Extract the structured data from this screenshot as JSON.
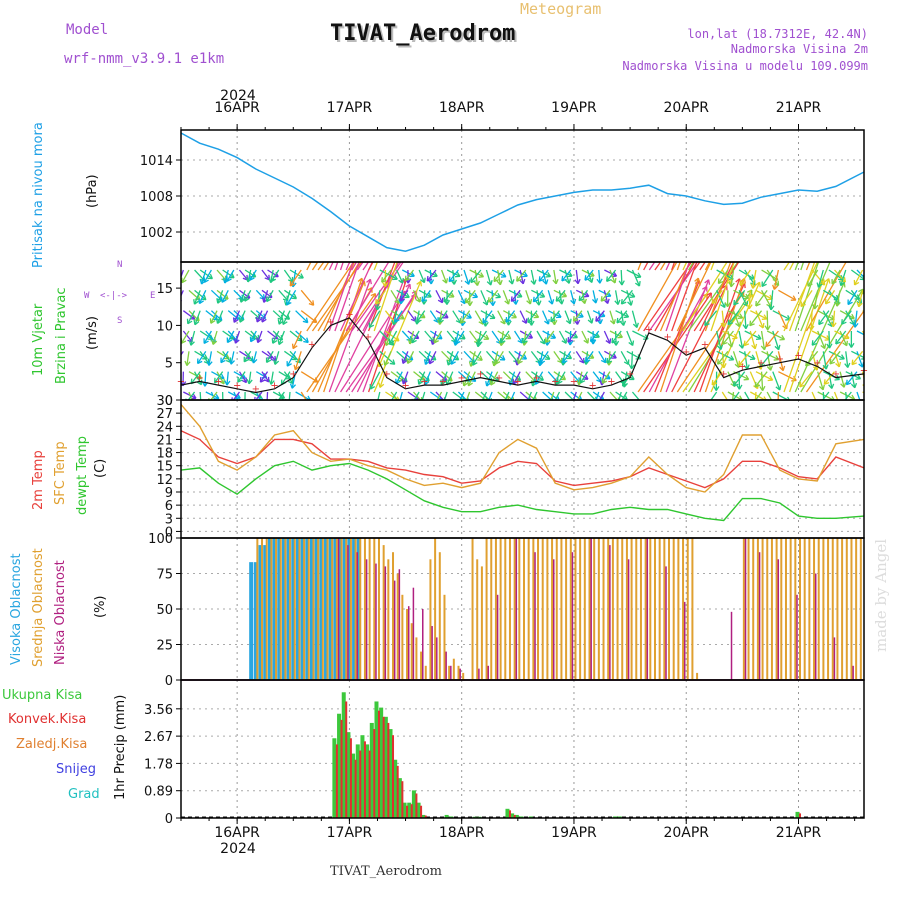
{
  "header": {
    "model_label": "Model",
    "model_name": "wrf-nmm_v3.9.1 e1km",
    "chart_kind": "Meteogram",
    "station_title": "TIVAT_Aerodrom",
    "lonlat": "lon,lat (18.7312E, 42.4N)",
    "alt_line1": "Nadmorska Visina 2m",
    "alt_line2": "Nadmorska Visina u modelu 109.099m",
    "footer_station": "TIVAT_Aerodrom",
    "watermark": "made by Angel",
    "year": "2024"
  },
  "colors": {
    "pressure": "#1ea0e6",
    "temp2m": "#e8413c",
    "sfc": "#e0a030",
    "dewpt": "#2fc62f",
    "high_cloud": "#2aa6e0",
    "mid_cloud": "#e0a030",
    "low_cloud": "#b02080",
    "total_rain": "#3cc83c",
    "conv_rain": "#e03030",
    "frozen": "#e08030",
    "snow": "#4040e0",
    "hail": "#20c0c0"
  },
  "x_axis": {
    "day_labels": [
      "16APR",
      "17APR",
      "18APR",
      "19APR",
      "20APR",
      "21APR"
    ],
    "day_starts_hours": [
      12,
      36,
      60,
      84,
      108,
      132
    ],
    "range_hours": [
      0,
      146
    ]
  },
  "panels": {
    "pressure": {
      "ylabel1": "Pritisak na nivou mora",
      "ylabel2": "(hPa)",
      "ticks": [
        "1002",
        "1008",
        "1014"
      ]
    },
    "wind": {
      "ylabel1": "10m Vjetar",
      "ylabel2": "Brzina i Pravac",
      "unit": "(m/s)",
      "ticks": [
        "0",
        "5",
        "10",
        "15"
      ],
      "compass_n": "N",
      "compass_s": "S",
      "compass_w": "W",
      "compass_e": "E"
    },
    "temperature": {
      "ylabel1": "2m Temp",
      "ylabel2": "SFC Temp",
      "ylabel3": "dewpt Temp",
      "unit": "(C)",
      "ticks": [
        "0",
        "3",
        "6",
        "9",
        "12",
        "15",
        "18",
        "21",
        "24",
        "27",
        "30"
      ]
    },
    "clouds": {
      "ylabel1": "Visoka Oblacnost",
      "ylabel2": "Srednja Oblacnost",
      "ylabel3": "Niska Oblacnost",
      "unit": "(%)",
      "ticks": [
        "0",
        "25",
        "50",
        "75",
        "100"
      ]
    },
    "precip": {
      "legend": [
        "Ukupna Kisa",
        "Konvek.Kisa",
        "Zaledj.Kisa",
        "Snijeg",
        "Grad"
      ],
      "ylabel": "1hr Precip (mm)",
      "ticks": [
        "0",
        "0.89",
        "1.78",
        "2.67",
        "3.56"
      ]
    }
  },
  "chart_data": [
    {
      "type": "line",
      "title": "Pritisak na nivou mora",
      "ylabel": "(hPa)",
      "ylim": [
        997,
        1019
      ],
      "x_hours": [
        0,
        4,
        8,
        12,
        16,
        20,
        24,
        28,
        32,
        36,
        40,
        44,
        48,
        52,
        56,
        60,
        64,
        68,
        72,
        76,
        80,
        84,
        88,
        92,
        96,
        100,
        104,
        108,
        112,
        116,
        120,
        124,
        128,
        132,
        136,
        140,
        146
      ],
      "series": [
        {
          "values": [
            1018.5,
            1016.8,
            1015.8,
            1014.4,
            1012.5,
            1011.0,
            1009.5,
            1007.6,
            1005.4,
            1003.0,
            1001.2,
            999.4,
            998.8,
            999.8,
            1001.5,
            1002.5,
            1003.5,
            1005.0,
            1006.5,
            1007.4,
            1008.0,
            1008.6,
            1009.0,
            1009.0,
            1009.3,
            1009.8,
            1008.4,
            1008.0,
            1007.2,
            1006.6,
            1006.8,
            1007.8,
            1008.4,
            1009.0,
            1008.8,
            1009.6,
            1012.0
          ]
        }
      ]
    },
    {
      "type": "line",
      "title": "10m Vjetar Brzina i Pravac",
      "ylabel": "(m/s)",
      "ylim": [
        0,
        18.5
      ],
      "x_hours": [
        0,
        4,
        8,
        12,
        16,
        20,
        24,
        28,
        32,
        36,
        40,
        44,
        48,
        52,
        56,
        60,
        64,
        68,
        72,
        76,
        80,
        84,
        88,
        92,
        96,
        100,
        104,
        108,
        112,
        116,
        120,
        124,
        128,
        132,
        136,
        140,
        146
      ],
      "series": [
        {
          "name": "speed",
          "values": [
            2,
            2.5,
            2,
            1.5,
            1,
            1.5,
            3,
            7,
            10,
            11,
            8,
            3,
            1.5,
            2,
            2,
            2.5,
            3,
            2.5,
            2,
            2.5,
            2,
            2,
            1.5,
            2,
            3,
            9,
            8,
            6,
            7,
            3,
            4,
            4.5,
            5,
            5.5,
            4.5,
            3,
            3.5
          ]
        }
      ]
    },
    {
      "type": "line",
      "title": "2m Temp / SFC Temp / dewpt Temp",
      "ylabel": "(C)",
      "ylim": [
        -1.5,
        30
      ],
      "x_hours": [
        0,
        4,
        8,
        12,
        16,
        20,
        24,
        28,
        32,
        36,
        40,
        44,
        48,
        52,
        56,
        60,
        64,
        68,
        72,
        76,
        80,
        84,
        88,
        92,
        96,
        100,
        104,
        108,
        112,
        116,
        120,
        124,
        128,
        132,
        136,
        140,
        146
      ],
      "series": [
        {
          "name": "2m Temp",
          "values": [
            23,
            21,
            17,
            15.5,
            17,
            21,
            21,
            20,
            16.5,
            16.5,
            16,
            14.5,
            14,
            13,
            12.5,
            11,
            11.5,
            14.5,
            16,
            15.5,
            11.5,
            10.5,
            11,
            11.5,
            12.5,
            14.5,
            13,
            11.5,
            10,
            12,
            16,
            16,
            14.5,
            12.5,
            12,
            17,
            14.5
          ]
        },
        {
          "name": "SFC Temp",
          "values": [
            29,
            24,
            16,
            14,
            17,
            22,
            23,
            18,
            16,
            16.5,
            15,
            14,
            12,
            10.5,
            11,
            10,
            11,
            18,
            21,
            19,
            11,
            9.5,
            10,
            11,
            12.5,
            17,
            13,
            10,
            9,
            13,
            22,
            22,
            14,
            12,
            11.5,
            20,
            21
          ]
        },
        {
          "name": "dewpt Temp",
          "values": [
            14,
            14.5,
            11,
            8.5,
            12,
            15,
            16,
            14,
            15,
            15.5,
            14,
            12,
            9.5,
            7,
            5.5,
            4.5,
            4.5,
            5.5,
            6,
            5,
            4.5,
            4,
            4,
            5,
            5.5,
            5,
            5,
            4,
            3,
            2.5,
            7.5,
            7.5,
            6.5,
            3.5,
            3,
            3,
            3.5
          ]
        }
      ]
    },
    {
      "type": "bar",
      "title": "Visoka / Srednja / Niska Oblacnost",
      "ylabel": "(%)",
      "ylim": [
        0,
        100
      ],
      "series": [
        {
          "name": "Visoka Oblacnost",
          "x_hours": [
            15,
            16,
            17,
            18,
            19,
            20,
            21,
            22,
            23,
            24,
            25,
            26,
            27,
            28,
            29,
            30,
            31,
            32,
            33,
            34,
            35,
            36,
            37,
            38
          ],
          "values": [
            83,
            83,
            95,
            95,
            100,
            100,
            100,
            100,
            100,
            100,
            100,
            100,
            100,
            100,
            100,
            100,
            100,
            100,
            100,
            100,
            100,
            100,
            100,
            100
          ]
        },
        {
          "name": "Srednja Oblacnost",
          "x_hours": [
            16,
            17,
            18,
            19,
            20,
            21,
            22,
            23,
            24,
            25,
            26,
            27,
            28,
            29,
            30,
            31,
            32,
            33,
            34,
            35,
            36,
            37,
            38,
            39,
            40,
            41,
            42,
            43,
            44,
            45,
            46,
            47,
            48,
            49,
            50,
            51,
            52,
            53,
            54,
            55,
            56,
            57,
            58,
            59,
            60,
            62,
            63,
            64,
            65,
            66,
            67,
            68,
            69,
            70,
            71,
            72,
            73,
            74,
            75,
            76,
            77,
            78,
            79,
            80,
            81,
            82,
            83,
            84,
            85,
            86,
            87,
            88,
            89,
            90,
            91,
            92,
            93,
            94,
            95,
            96,
            97,
            98,
            99,
            100,
            101,
            102,
            103,
            104,
            105,
            106,
            107,
            108,
            109,
            110,
            120,
            121,
            122,
            123,
            124,
            125,
            126,
            127,
            128,
            129,
            130,
            131,
            132,
            133,
            134,
            135,
            136,
            137,
            138,
            139,
            140,
            141,
            142,
            143,
            144,
            145
          ],
          "values": [
            100,
            100,
            100,
            100,
            100,
            100,
            100,
            100,
            100,
            100,
            100,
            100,
            100,
            100,
            100,
            100,
            100,
            100,
            100,
            100,
            100,
            100,
            100,
            100,
            100,
            100,
            100,
            95,
            85,
            90,
            75,
            60,
            50,
            40,
            30,
            20,
            10,
            85,
            100,
            90,
            60,
            10,
            15,
            10,
            5,
            100,
            85,
            80,
            100,
            100,
            100,
            100,
            100,
            100,
            100,
            100,
            100,
            100,
            100,
            100,
            100,
            100,
            100,
            100,
            100,
            100,
            100,
            100,
            100,
            100,
            100,
            100,
            100,
            100,
            100,
            100,
            100,
            100,
            100,
            100,
            100,
            100,
            100,
            100,
            100,
            100,
            100,
            100,
            100,
            100,
            100,
            100,
            100,
            5,
            100,
            100,
            100,
            100,
            100,
            100,
            100,
            100,
            100,
            100,
            100,
            100,
            100,
            100,
            100,
            100,
            100,
            100,
            100,
            100,
            100,
            100,
            100,
            100,
            100,
            100
          ]
        },
        {
          "name": "Niska Oblacnost",
          "x_hours": [
            34,
            36,
            38,
            40,
            42,
            44,
            46,
            47,
            49,
            50,
            52,
            54,
            55,
            57,
            58,
            60,
            64,
            66,
            68,
            72,
            76,
            80,
            84,
            88,
            92,
            96,
            100,
            104,
            108,
            118,
            121,
            124,
            128,
            132,
            136,
            140,
            144
          ],
          "values": [
            100,
            95,
            90,
            85,
            82,
            80,
            70,
            78,
            52,
            65,
            50,
            38,
            30,
            20,
            10,
            8,
            8,
            10,
            60,
            100,
            90,
            85,
            90,
            100,
            95,
            85,
            100,
            80,
            55,
            48,
            100,
            90,
            85,
            60,
            75,
            30,
            10
          ]
        }
      ]
    },
    {
      "type": "bar",
      "title": "1hr Precip",
      "ylabel": "1hr Precip (mm)",
      "ylim": [
        0,
        4.5
      ],
      "series": [
        {
          "name": "Ukupna Kisa",
          "x_hours": [
            33,
            34,
            35,
            36,
            37,
            38,
            39,
            40,
            41,
            42,
            43,
            44,
            45,
            46,
            47,
            48,
            49,
            50,
            51,
            52,
            57,
            58,
            63,
            64,
            70,
            71,
            72,
            73,
            75,
            93,
            94,
            132
          ],
          "values": [
            2.6,
            3.4,
            4.1,
            2.8,
            2.1,
            2.4,
            2.7,
            2.4,
            3.1,
            3.8,
            3.6,
            3.3,
            2.9,
            1.9,
            1.3,
            0.5,
            0.5,
            0.9,
            0.5,
            0.1,
            0.1,
            0.05,
            0.04,
            0.04,
            0.3,
            0.15,
            0.1,
            0.05,
            0.05,
            0.05,
            0.05,
            0.2
          ]
        },
        {
          "name": "Konvek.Kisa",
          "x_hours": [
            33,
            34,
            35,
            36,
            37,
            38,
            39,
            40,
            41,
            42,
            43,
            44,
            45,
            46,
            47,
            48,
            49,
            50,
            51,
            52,
            70,
            71,
            132
          ],
          "values": [
            2.4,
            3.2,
            3.8,
            2.6,
            1.9,
            2.2,
            2.5,
            2.2,
            2.9,
            3.5,
            3.3,
            3.1,
            2.7,
            1.7,
            1.2,
            0.4,
            0.45,
            0.8,
            0.4,
            0.08,
            0.25,
            0.1,
            0.15
          ]
        },
        {
          "name": "Zaledj.Kisa",
          "x_hours": [],
          "values": []
        },
        {
          "name": "Snijeg",
          "x_hours": [],
          "values": []
        },
        {
          "name": "Grad",
          "x_hours": [],
          "values": []
        }
      ]
    }
  ]
}
